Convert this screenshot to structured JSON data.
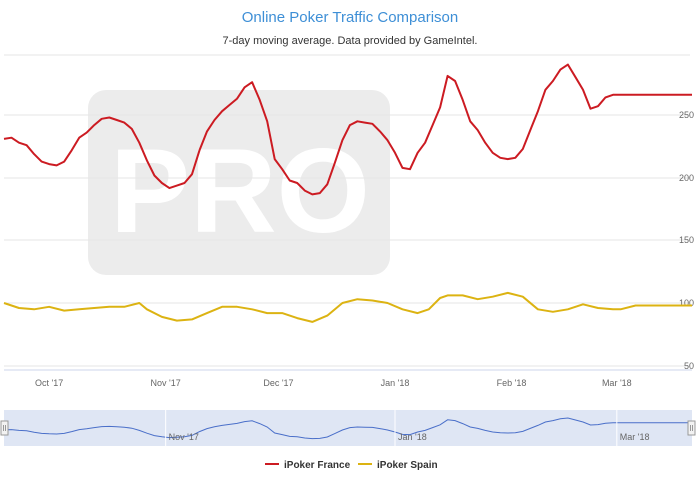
{
  "colors": {
    "title": "#3e8fd6",
    "france": "#cc1b22",
    "spain": "#dcb312",
    "navigator": "#4a6fc9",
    "navigator_fill": "#dfe6f4",
    "grid": "#e6e6e6",
    "watermark": "#ececec"
  },
  "watermark_text": "PRO",
  "chart_data": {
    "type": "line",
    "title": "Online Poker Traffic Comparison",
    "subtitle": "7-day moving average. Data provided by GameIntel.",
    "x_start": "2017-09-19",
    "x_end": "2018-03-21",
    "x_ticks": [
      {
        "date": "2017-10-01",
        "label": "Oct '17"
      },
      {
        "date": "2017-11-01",
        "label": "Nov '17"
      },
      {
        "date": "2017-12-01",
        "label": "Dec '17"
      },
      {
        "date": "2018-01-01",
        "label": "Jan '18"
      },
      {
        "date": "2018-02-01",
        "label": "Feb '18"
      },
      {
        "date": "2018-03-01",
        "label": "Mar '18"
      }
    ],
    "navigator_ticks": [
      {
        "date": "2017-11-01",
        "label": "Nov '17"
      },
      {
        "date": "2018-01-01",
        "label": "Jan '18"
      },
      {
        "date": "2018-03-01",
        "label": "Mar '18"
      }
    ],
    "y_ticks_main": [
      200,
      250
    ],
    "y_ticks_lower": [
      50,
      100,
      150
    ],
    "series": [
      {
        "name": "iPoker France",
        "values": [
          [
            "2017-09-19",
            231
          ],
          [
            "2017-09-21",
            232
          ],
          [
            "2017-09-23",
            228
          ],
          [
            "2017-09-25",
            226
          ],
          [
            "2017-09-27",
            219
          ],
          [
            "2017-09-29",
            213
          ],
          [
            "2017-10-01",
            211
          ],
          [
            "2017-10-03",
            210
          ],
          [
            "2017-10-05",
            213
          ],
          [
            "2017-10-07",
            222
          ],
          [
            "2017-10-09",
            232
          ],
          [
            "2017-10-11",
            236
          ],
          [
            "2017-10-13",
            242
          ],
          [
            "2017-10-15",
            247
          ],
          [
            "2017-10-17",
            248
          ],
          [
            "2017-10-19",
            246
          ],
          [
            "2017-10-21",
            244
          ],
          [
            "2017-10-23",
            239
          ],
          [
            "2017-10-25",
            228
          ],
          [
            "2017-10-27",
            214
          ],
          [
            "2017-10-29",
            202
          ],
          [
            "2017-10-31",
            196
          ],
          [
            "2017-11-02",
            192
          ],
          [
            "2017-11-04",
            194
          ],
          [
            "2017-11-06",
            196
          ],
          [
            "2017-11-08",
            203
          ],
          [
            "2017-11-10",
            222
          ],
          [
            "2017-11-12",
            237
          ],
          [
            "2017-11-14",
            246
          ],
          [
            "2017-11-16",
            253
          ],
          [
            "2017-11-18",
            258
          ],
          [
            "2017-11-20",
            263
          ],
          [
            "2017-11-22",
            272
          ],
          [
            "2017-11-24",
            276
          ],
          [
            "2017-11-26",
            262
          ],
          [
            "2017-11-28",
            245
          ],
          [
            "2017-11-30",
            215
          ],
          [
            "2017-12-02",
            207
          ],
          [
            "2017-12-04",
            198
          ],
          [
            "2017-12-06",
            196
          ],
          [
            "2017-12-08",
            190
          ],
          [
            "2017-12-10",
            187
          ],
          [
            "2017-12-12",
            188
          ],
          [
            "2017-12-14",
            195
          ],
          [
            "2017-12-16",
            212
          ],
          [
            "2017-12-18",
            230
          ],
          [
            "2017-12-20",
            242
          ],
          [
            "2017-12-22",
            245
          ],
          [
            "2017-12-24",
            244
          ],
          [
            "2017-12-26",
            243
          ],
          [
            "2017-12-28",
            237
          ],
          [
            "2017-12-30",
            230
          ],
          [
            "2018-01-01",
            220
          ],
          [
            "2018-01-03",
            208
          ],
          [
            "2018-01-05",
            207
          ],
          [
            "2018-01-07",
            220
          ],
          [
            "2018-01-09",
            228
          ],
          [
            "2018-01-11",
            242
          ],
          [
            "2018-01-13",
            256
          ],
          [
            "2018-01-15",
            281
          ],
          [
            "2018-01-17",
            277
          ],
          [
            "2018-01-19",
            262
          ],
          [
            "2018-01-21",
            245
          ],
          [
            "2018-01-23",
            238
          ],
          [
            "2018-01-25",
            228
          ],
          [
            "2018-01-27",
            220
          ],
          [
            "2018-01-29",
            216
          ],
          [
            "2018-01-31",
            215
          ],
          [
            "2018-02-02",
            216
          ],
          [
            "2018-02-04",
            223
          ],
          [
            "2018-02-06",
            238
          ],
          [
            "2018-02-08",
            253
          ],
          [
            "2018-02-10",
            270
          ],
          [
            "2018-02-12",
            277
          ],
          [
            "2018-02-14",
            286
          ],
          [
            "2018-02-16",
            290
          ],
          [
            "2018-02-18",
            280
          ],
          [
            "2018-02-20",
            270
          ],
          [
            "2018-02-22",
            255
          ],
          [
            "2018-02-24",
            257
          ],
          [
            "2018-02-26",
            264
          ],
          [
            "2018-02-28",
            266
          ],
          [
            "2018-03-02",
            266
          ],
          [
            "2018-03-06",
            266
          ],
          [
            "2018-03-10",
            266
          ],
          [
            "2018-03-14",
            266
          ],
          [
            "2018-03-18",
            266
          ],
          [
            "2018-03-21",
            266
          ]
        ]
      },
      {
        "name": "iPoker Spain",
        "values": [
          [
            "2017-09-19",
            100
          ],
          [
            "2017-09-23",
            96
          ],
          [
            "2017-09-27",
            95
          ],
          [
            "2017-10-01",
            97
          ],
          [
            "2017-10-05",
            94
          ],
          [
            "2017-10-09",
            95
          ],
          [
            "2017-10-13",
            96
          ],
          [
            "2017-10-17",
            97
          ],
          [
            "2017-10-21",
            97
          ],
          [
            "2017-10-25",
            100
          ],
          [
            "2017-10-27",
            95
          ],
          [
            "2017-10-31",
            89
          ],
          [
            "2017-11-04",
            86
          ],
          [
            "2017-11-08",
            87
          ],
          [
            "2017-11-12",
            92
          ],
          [
            "2017-11-16",
            97
          ],
          [
            "2017-11-20",
            97
          ],
          [
            "2017-11-24",
            95
          ],
          [
            "2017-11-28",
            92
          ],
          [
            "2017-12-02",
            92
          ],
          [
            "2017-12-06",
            88
          ],
          [
            "2017-12-10",
            85
          ],
          [
            "2017-12-14",
            90
          ],
          [
            "2017-12-18",
            100
          ],
          [
            "2017-12-22",
            103
          ],
          [
            "2017-12-26",
            102
          ],
          [
            "2017-12-30",
            100
          ],
          [
            "2018-01-03",
            95
          ],
          [
            "2018-01-07",
            92
          ],
          [
            "2018-01-10",
            95
          ],
          [
            "2018-01-13",
            104
          ],
          [
            "2018-01-15",
            106
          ],
          [
            "2018-01-19",
            106
          ],
          [
            "2018-01-23",
            103
          ],
          [
            "2018-01-27",
            105
          ],
          [
            "2018-01-31",
            108
          ],
          [
            "2018-02-04",
            105
          ],
          [
            "2018-02-08",
            95
          ],
          [
            "2018-02-12",
            93
          ],
          [
            "2018-02-16",
            95
          ],
          [
            "2018-02-20",
            99
          ],
          [
            "2018-02-24",
            96
          ],
          [
            "2018-02-28",
            95
          ],
          [
            "2018-03-02",
            95
          ],
          [
            "2018-03-06",
            98
          ],
          [
            "2018-03-10",
            98
          ],
          [
            "2018-03-14",
            98
          ],
          [
            "2018-03-18",
            98
          ],
          [
            "2018-03-21",
            98
          ]
        ]
      }
    ]
  }
}
